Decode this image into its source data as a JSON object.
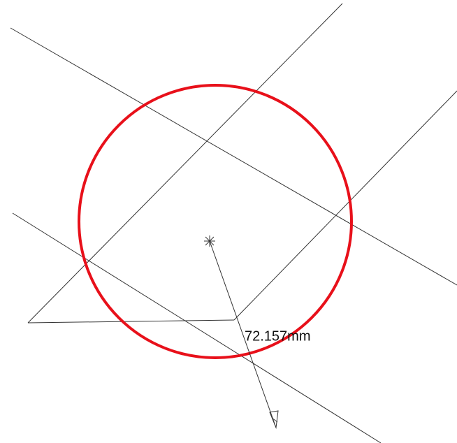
{
  "dimension": {
    "label": "72.157mm"
  }
}
